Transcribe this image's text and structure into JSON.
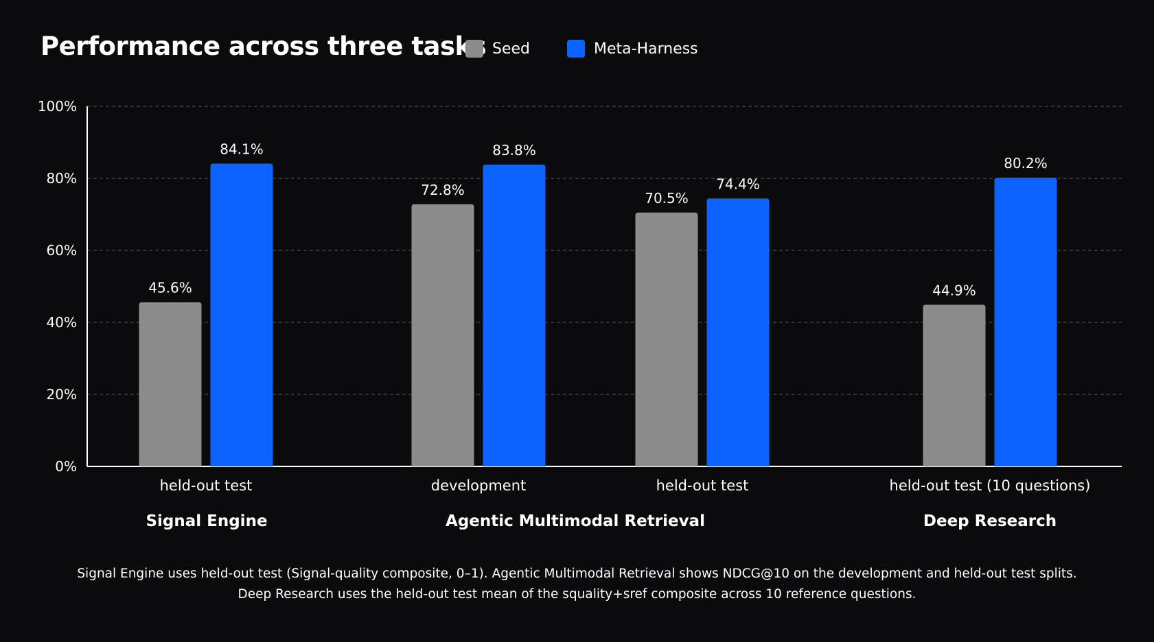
{
  "chart_data": {
    "type": "bar",
    "title": "Performance across three tasks",
    "legend_position": "top",
    "grid": true,
    "ylim": [
      0,
      100
    ],
    "ytick_labels": [
      "0%",
      "20%",
      "40%",
      "60%",
      "80%",
      "100%"
    ],
    "yticks": [
      0,
      20,
      40,
      60,
      80,
      100
    ],
    "series": [
      {
        "name": "Seed",
        "color": "#8c8c8c"
      },
      {
        "name": "Meta-Harness",
        "color": "#0d63ff"
      }
    ],
    "groups": [
      {
        "task": "Signal Engine",
        "categories": [
          {
            "label": "held-out test",
            "values": [
              45.6,
              84.1
            ],
            "value_labels": [
              "45.6%",
              "84.1%"
            ]
          }
        ]
      },
      {
        "task": "Agentic Multimodal Retrieval",
        "categories": [
          {
            "label": "development",
            "values": [
              72.8,
              83.8
            ],
            "value_labels": [
              "72.8%",
              "83.8%"
            ]
          },
          {
            "label": "held-out test",
            "values": [
              70.5,
              74.4
            ],
            "value_labels": [
              "70.5%",
              "74.4%"
            ]
          }
        ]
      },
      {
        "task": "Deep Research",
        "categories": [
          {
            "label": "held-out test (10 questions)",
            "values": [
              44.9,
              80.2
            ],
            "value_labels": [
              "44.9%",
              "80.2%"
            ]
          }
        ]
      }
    ]
  },
  "footnote": {
    "line1": "Signal Engine uses held-out test (Signal-quality composite, 0–1). Agentic Multimodal Retrieval shows NDCG@10 on the development and held-out test splits.",
    "line2": "Deep Research uses the held-out test mean of the squality+sref composite across 10 reference questions."
  },
  "colors": {
    "background": "#0b0b0d",
    "seed": "#8c8c8c",
    "meta_harness": "#0d63ff",
    "text": "#ffffff",
    "grid": "#5a5a5a"
  }
}
